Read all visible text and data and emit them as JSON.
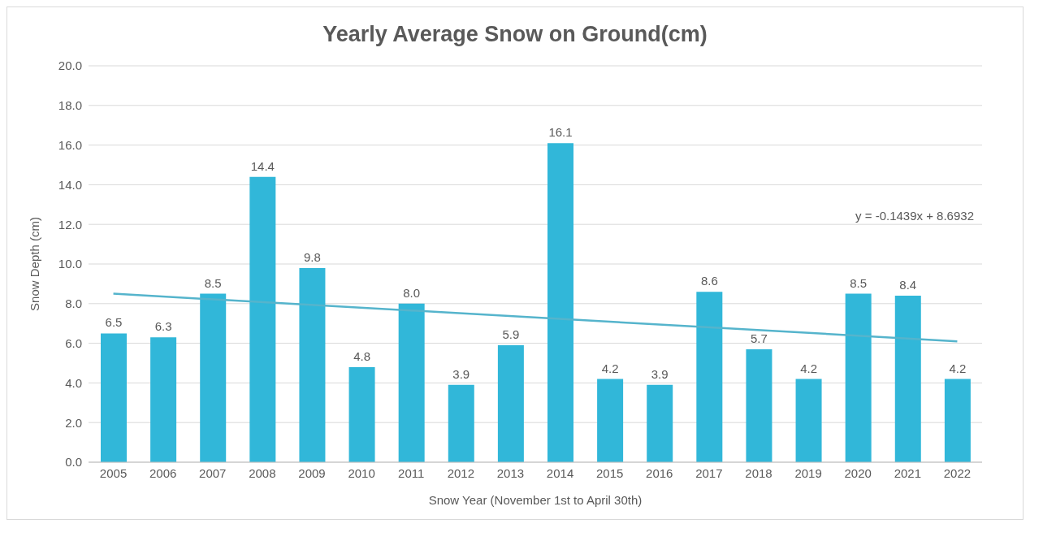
{
  "chart_data": {
    "type": "bar",
    "title": "Yearly Average Snow on Ground(cm)",
    "xlabel": "Snow Year (November 1st to April 30th)",
    "ylabel": "Snow Depth (cm)",
    "categories": [
      "2005",
      "2006",
      "2007",
      "2008",
      "2009",
      "2010",
      "2011",
      "2012",
      "2013",
      "2014",
      "2015",
      "2016",
      "2017",
      "2018",
      "2019",
      "2020",
      "2021",
      "2022"
    ],
    "series": [
      {
        "color": "#31b7d9",
        "values": [
          6.5,
          6.3,
          8.5,
          14.4,
          9.8,
          4.8,
          8.0,
          3.9,
          5.9,
          16.1,
          4.2,
          3.9,
          8.6,
          5.7,
          4.2,
          8.5,
          8.4,
          4.2
        ],
        "value_labels": [
          "6.5",
          "6.3",
          "8.5",
          "14.4",
          "9.8",
          "4.8",
          "8.0",
          "3.9",
          "5.9",
          "16.1",
          "4.2",
          "3.9",
          "8.6",
          "5.7",
          "4.2",
          "8.5",
          "8.4",
          "4.2"
        ]
      },
      {
        "type": "line",
        "color": "#55b4cc",
        "values": [
          8.5,
          null,
          null,
          null,
          null,
          null,
          null,
          null,
          null,
          null,
          null,
          null,
          null,
          null,
          null,
          null,
          null,
          6.1
        ]
      }
    ],
    "ylim": [
      0,
      20
    ],
    "yticks": [
      {
        "value": 0,
        "label": "0.0"
      },
      {
        "value": 2,
        "label": "2.0"
      },
      {
        "value": 4,
        "label": "4.0"
      },
      {
        "value": 6,
        "label": "6.0"
      },
      {
        "value": 8,
        "label": "8.0"
      },
      {
        "value": 10,
        "label": "10.0"
      },
      {
        "value": 12,
        "label": "12.0"
      },
      {
        "value": 14,
        "label": "14.0"
      },
      {
        "value": 16,
        "label": "16.0"
      },
      {
        "value": 18,
        "label": "18.0"
      },
      {
        "value": 20,
        "label": "20.0"
      }
    ],
    "grid": "y",
    "legend": false,
    "marker": "none",
    "annotations": [
      "y = -0.1439x + 8.6932"
    ]
  }
}
